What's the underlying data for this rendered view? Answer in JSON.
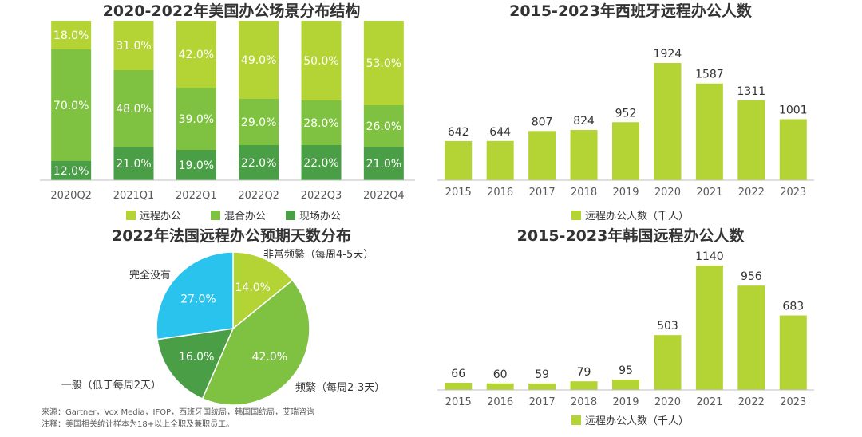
{
  "chart_data": [
    {
      "type": "bar",
      "stacked": true,
      "title": "2020-2022年美国办公场景分布结构",
      "categories": [
        "2020Q2",
        "2021Q1",
        "2022Q1",
        "2022Q2",
        "2022Q3",
        "2022Q4"
      ],
      "series": [
        {
          "name": "远程办公",
          "color": "#b4d334",
          "values": [
            18.0,
            31.0,
            42.0,
            49.0,
            50.0,
            53.0
          ]
        },
        {
          "name": "混合办公",
          "color": "#7fc241",
          "values": [
            70.0,
            48.0,
            39.0,
            29.0,
            28.0,
            26.0
          ]
        },
        {
          "name": "现场办公",
          "color": "#4a9e45",
          "values": [
            12.0,
            21.0,
            19.0,
            22.0,
            22.0,
            21.0
          ]
        }
      ],
      "labels": [
        [
          "18.0%",
          "31.0%",
          "42.0%",
          "49.0%",
          "50.0%",
          "53.0%"
        ],
        [
          "70.0%",
          "48.0%",
          "39.0%",
          "29.0%",
          "28.0%",
          "26.0%"
        ],
        [
          "12.0%",
          "21.0%",
          "19.0%",
          "22.0%",
          "22.0%",
          "21.0%"
        ]
      ],
      "ylim": [
        0,
        100
      ],
      "legend": "bottom"
    },
    {
      "type": "bar",
      "title": "2015-2023年西班牙远程办公人数",
      "categories": [
        "2015",
        "2016",
        "2017",
        "2018",
        "2019",
        "2020",
        "2021",
        "2022",
        "2023"
      ],
      "series": [
        {
          "name": "远程办公人数（千人）",
          "color": "#b4d334",
          "values": [
            642,
            644,
            807,
            824,
            952,
            1924,
            1587,
            1311,
            1001
          ]
        }
      ],
      "ylim": [
        0,
        2000
      ],
      "legend": "bottom"
    },
    {
      "type": "pie",
      "title": "2022年法国远程办公预期天数分布",
      "slices": [
        {
          "name": "非常频繁（每周4-5天）",
          "value": 14.0,
          "label": "14.0%",
          "color": "#b4d334"
        },
        {
          "name": "频繁（每周2-3天）",
          "value": 42.0,
          "label": "42.0%",
          "color": "#7fc241"
        },
        {
          "name": "一般（低于每周2天）",
          "value": 16.0,
          "label": "16.0%",
          "color": "#4a9e45"
        },
        {
          "name": "完全没有",
          "value": 27.0,
          "label": "27.0%",
          "color": "#29c3ee"
        }
      ]
    },
    {
      "type": "bar",
      "title": "2015-2023年韩国远程办公人数",
      "categories": [
        "2015",
        "2016",
        "2017",
        "2018",
        "2019",
        "2020",
        "2021",
        "2022",
        "2023"
      ],
      "series": [
        {
          "name": "远程办公人数（千人）",
          "color": "#b4d334",
          "values": [
            66,
            60,
            59,
            79,
            95,
            503,
            1140,
            956,
            683
          ]
        }
      ],
      "ylim": [
        0,
        1200
      ],
      "legend": "bottom"
    }
  ],
  "source": {
    "line1": "来源：Gartner，Vox Media，IFOP，西班牙国统局，韩国国统局，艾瑞咨询",
    "line2": "注释：美国相关统计样本为18+以上全职及兼职员工。"
  }
}
